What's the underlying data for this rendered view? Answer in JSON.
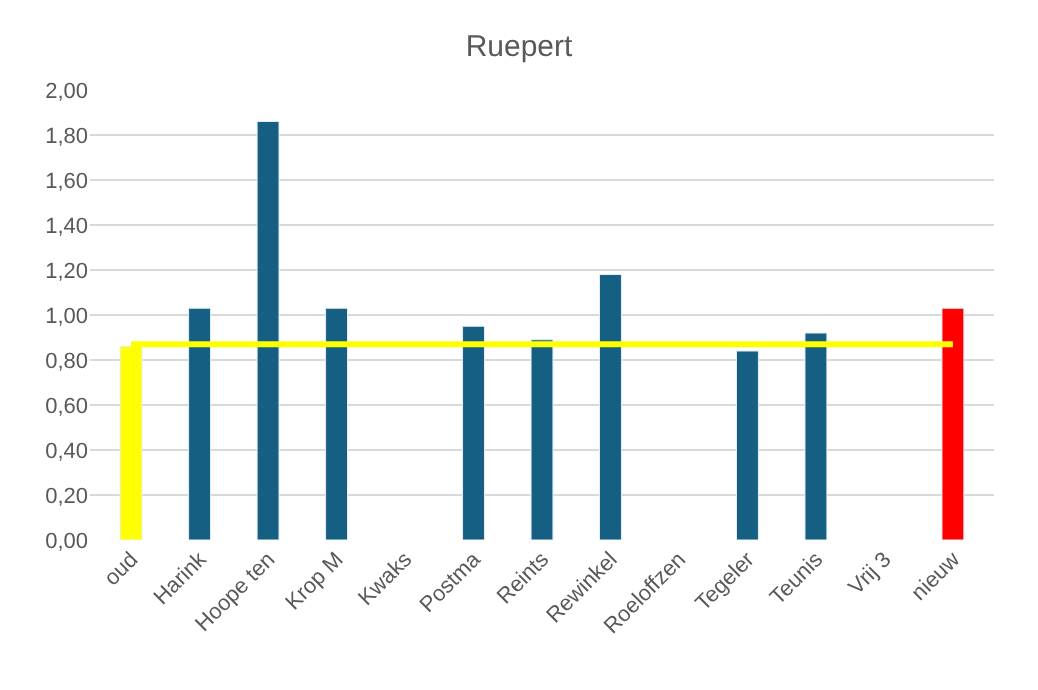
{
  "chart_data": {
    "type": "bar",
    "title": "Ruepert",
    "categories": [
      "oud",
      "Harink",
      "Hoope ten",
      "Krop M",
      "Kwaks",
      "Postma",
      "Reints",
      "Rewinkel",
      "Roeloffzen",
      "Tegeler",
      "Teunis",
      "Vrij 3",
      "nieuw"
    ],
    "series": [
      {
        "values": [
          0.86,
          1.03,
          1.86,
          1.03,
          null,
          0.95,
          0.89,
          1.18,
          null,
          0.84,
          0.92,
          null,
          1.03
        ],
        "colors": [
          "#ffff00",
          "#155f82",
          "#155f82",
          "#155f82",
          "#155f82",
          "#155f82",
          "#155f82",
          "#155f82",
          "#155f82",
          "#155f82",
          "#155f82",
          "#155f82",
          "#ff0000"
        ]
      },
      {
        "type": "line",
        "color": "#ffff00",
        "values": [
          0.87,
          0.87,
          0.87,
          0.87,
          0.87,
          0.87,
          0.87,
          0.87,
          0.87,
          0.87,
          0.87,
          0.87,
          0.87
        ]
      }
    ],
    "ylim": [
      0,
      2
    ],
    "yticks": [
      {
        "value": 0,
        "label": "0,00"
      },
      {
        "value": 0.2,
        "label": "0,20"
      },
      {
        "value": 0.4,
        "label": "0,40"
      },
      {
        "value": 0.6,
        "label": "0,60"
      },
      {
        "value": 0.8,
        "label": "0,80"
      },
      {
        "value": 1.0,
        "label": "1,00"
      },
      {
        "value": 1.2,
        "label": "1,20"
      },
      {
        "value": 1.4,
        "label": "1,40"
      },
      {
        "value": 1.6,
        "label": "1,60"
      },
      {
        "value": 1.8,
        "label": "1,80"
      },
      {
        "value": 2.0,
        "label": "2,00"
      }
    ],
    "grid": "y",
    "marker": "none"
  }
}
